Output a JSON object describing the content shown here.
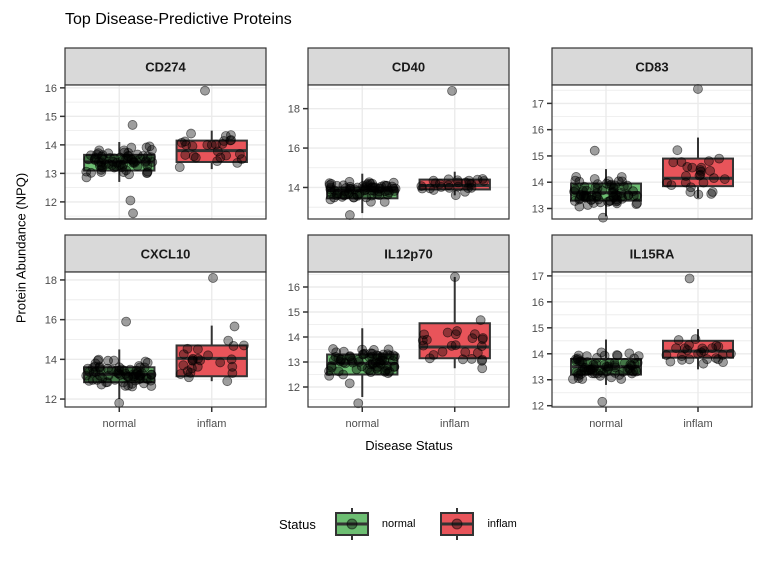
{
  "chart_data": {
    "type": "boxplot",
    "title": "Top Disease-Predictive Proteins",
    "xlabel": "Disease Status",
    "ylabel": "Protein Abundance (NPQ)",
    "categories": [
      "normal",
      "inflam"
    ],
    "legend": {
      "title": "Status",
      "position": "bottom",
      "entries": [
        {
          "label": "normal",
          "color": "#6DBE72"
        },
        {
          "label": "inflam",
          "color": "#E8545A"
        }
      ]
    },
    "grid": true,
    "facets": [
      {
        "name": "CD274",
        "ylim": [
          11.4,
          16.1
        ],
        "ticks": [
          12,
          13,
          14,
          15,
          16
        ],
        "boxes": [
          {
            "group": "normal",
            "q1": 13.1,
            "median": 13.4,
            "q3": 13.65,
            "whisk_lo": 12.7,
            "whisk_hi": 14.1
          },
          {
            "group": "inflam",
            "q1": 13.4,
            "median": 13.8,
            "q3": 14.15,
            "whisk_lo": 13.15,
            "whisk_hi": 14.5
          }
        ],
        "outliers": [
          {
            "group": "normal",
            "y": 14.7
          },
          {
            "group": "normal",
            "y": 12.05
          },
          {
            "group": "normal",
            "y": 11.6
          },
          {
            "group": "inflam",
            "y": 15.9
          }
        ]
      },
      {
        "name": "CD40",
        "ylim": [
          12.4,
          19.2
        ],
        "ticks": [
          14,
          16,
          18
        ],
        "boxes": [
          {
            "group": "normal",
            "q1": 13.45,
            "median": 13.85,
            "q3": 14.0,
            "whisk_lo": 12.7,
            "whisk_hi": 14.7
          },
          {
            "group": "inflam",
            "q1": 13.9,
            "median": 14.1,
            "q3": 14.4,
            "whisk_lo": 13.6,
            "whisk_hi": 14.8
          }
        ],
        "outliers": [
          {
            "group": "normal",
            "y": 12.6
          },
          {
            "group": "inflam",
            "y": 18.9
          }
        ]
      },
      {
        "name": "CD83",
        "ylim": [
          12.6,
          17.7
        ],
        "ticks": [
          13,
          14,
          15,
          16,
          17
        ],
        "boxes": [
          {
            "group": "normal",
            "q1": 13.3,
            "median": 13.6,
            "q3": 13.95,
            "whisk_lo": 12.7,
            "whisk_hi": 14.5
          },
          {
            "group": "inflam",
            "q1": 13.85,
            "median": 14.15,
            "q3": 14.9,
            "whisk_lo": 13.4,
            "whisk_hi": 15.7
          }
        ],
        "outliers": [
          {
            "group": "normal",
            "y": 15.2
          },
          {
            "group": "normal",
            "y": 12.65
          },
          {
            "group": "inflam",
            "y": 17.55
          }
        ]
      },
      {
        "name": "CXCL10",
        "ylim": [
          11.6,
          18.4
        ],
        "ticks": [
          12,
          14,
          16,
          18
        ],
        "boxes": [
          {
            "group": "normal",
            "q1": 12.85,
            "median": 13.25,
            "q3": 13.6,
            "whisk_lo": 12.0,
            "whisk_hi": 14.5
          },
          {
            "group": "inflam",
            "q1": 13.15,
            "median": 14.05,
            "q3": 14.7,
            "whisk_lo": 12.9,
            "whisk_hi": 15.7
          }
        ],
        "outliers": [
          {
            "group": "normal",
            "y": 15.9
          },
          {
            "group": "normal",
            "y": 11.8
          },
          {
            "group": "inflam",
            "y": 18.1
          }
        ]
      },
      {
        "name": "IL12p70",
        "ylim": [
          11.2,
          16.6
        ],
        "ticks": [
          12,
          13,
          14,
          15,
          16
        ],
        "boxes": [
          {
            "group": "normal",
            "q1": 12.5,
            "median": 12.95,
            "q3": 13.3,
            "whisk_lo": 11.6,
            "whisk_hi": 14.35
          },
          {
            "group": "inflam",
            "q1": 13.15,
            "median": 13.6,
            "q3": 14.55,
            "whisk_lo": 12.75,
            "whisk_hi": 16.4
          }
        ],
        "outliers": [
          {
            "group": "normal",
            "y": 11.35
          },
          {
            "group": "inflam",
            "y": 16.4
          }
        ]
      },
      {
        "name": "IL15RA",
        "ylim": [
          11.95,
          17.15
        ],
        "ticks": [
          12,
          13,
          14,
          15,
          16,
          17
        ],
        "boxes": [
          {
            "group": "normal",
            "q1": 13.2,
            "median": 13.5,
            "q3": 13.8,
            "whisk_lo": 12.8,
            "whisk_hi": 14.55
          },
          {
            "group": "inflam",
            "q1": 13.85,
            "median": 14.1,
            "q3": 14.5,
            "whisk_lo": 13.4,
            "whisk_hi": 14.95
          }
        ],
        "outliers": [
          {
            "group": "normal",
            "y": 12.15
          },
          {
            "group": "inflam",
            "y": 16.9
          }
        ]
      }
    ]
  }
}
